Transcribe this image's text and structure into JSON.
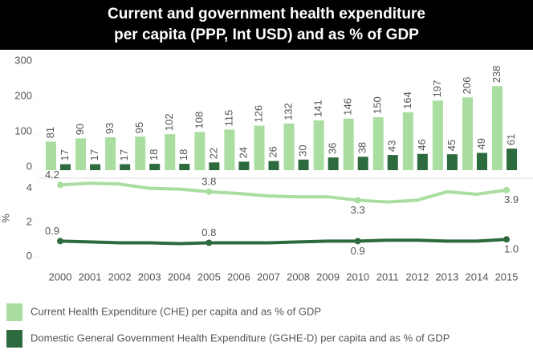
{
  "chart_data": [
    {
      "type": "bar",
      "title": "Current and government health expenditure\nper capita (PPP, Int USD) and as % of GDP",
      "categories": [
        "2000",
        "2001",
        "2002",
        "2003",
        "2004",
        "2005",
        "2006",
        "2007",
        "2008",
        "2009",
        "2010",
        "2011",
        "2012",
        "2013",
        "2014",
        "2015"
      ],
      "series": [
        {
          "name": "Current Health Expenditure (CHE) per capita and as % of GDP",
          "color": "#a9dea0",
          "values": [
            81,
            90,
            93,
            95,
            102,
            108,
            115,
            126,
            132,
            141,
            146,
            150,
            164,
            197,
            206,
            238
          ]
        },
        {
          "name": "Domestic General Government Health Expenditure (GGHE-D) per capita and as % of GDP",
          "color": "#2d6a3e",
          "values": [
            17,
            17,
            17,
            18,
            18,
            22,
            24,
            26,
            30,
            36,
            38,
            43,
            46,
            45,
            49,
            61
          ]
        }
      ],
      "ylim": [
        0,
        325
      ],
      "yticks": [
        0,
        100,
        200,
        300
      ]
    },
    {
      "type": "line",
      "ylabel": "%",
      "series": [
        {
          "color": "#a9dea0",
          "values": [
            4.2,
            4.3,
            4.25,
            4.0,
            3.95,
            3.8,
            3.7,
            3.55,
            3.5,
            3.5,
            3.3,
            3.2,
            3.3,
            3.8,
            3.65,
            3.9
          ],
          "value_labels": [
            "4.2",
            null,
            null,
            null,
            null,
            "3.8",
            null,
            null,
            null,
            null,
            "3.3",
            null,
            null,
            null,
            null,
            "3.9"
          ]
        },
        {
          "color": "#2d6a3e",
          "values": [
            0.9,
            0.85,
            0.8,
            0.8,
            0.75,
            0.8,
            0.8,
            0.8,
            0.85,
            0.9,
            0.9,
            0.95,
            0.95,
            0.9,
            0.9,
            1.0
          ],
          "value_labels": [
            "0.9",
            null,
            null,
            null,
            null,
            "0.8",
            null,
            null,
            null,
            null,
            "0.9",
            null,
            null,
            null,
            null,
            "1.0"
          ]
        }
      ],
      "ylim": [
        -0.5,
        4.5
      ],
      "yticks": [
        0,
        2,
        4
      ]
    }
  ]
}
